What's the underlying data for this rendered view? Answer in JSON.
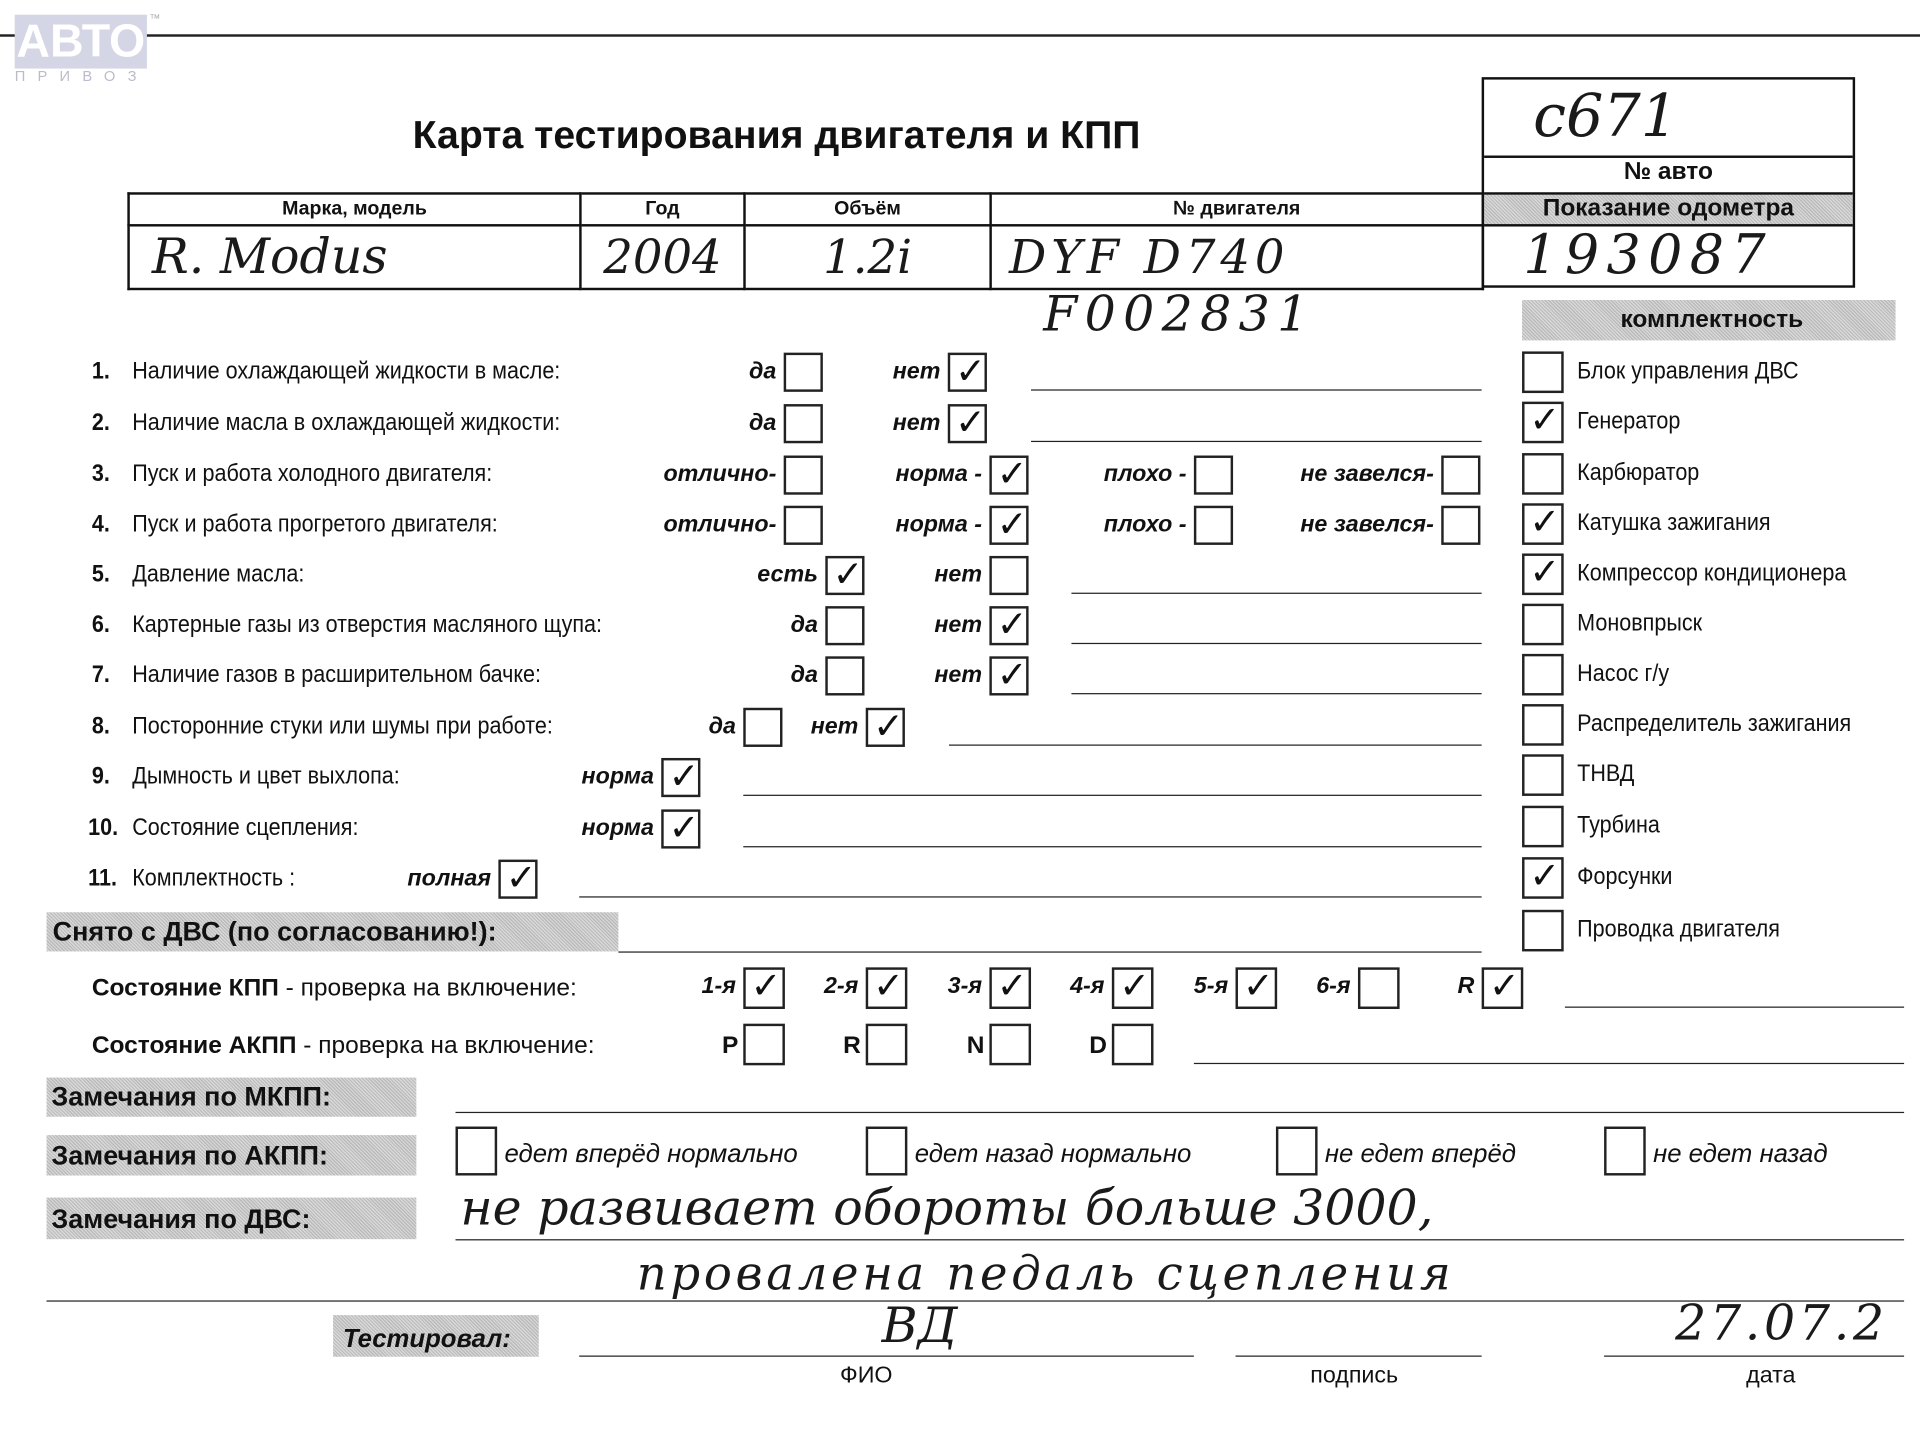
{
  "logo": {
    "text": "АВТО",
    "sub": "ПРИВОЗ",
    "tm": "™"
  },
  "title": "Карта тестирования двигателя  и КПП",
  "car_no": {
    "value": "c671",
    "label": "№ авто"
  },
  "odometer": {
    "label": "Показание одометра",
    "value": "193087"
  },
  "table": {
    "headers": [
      "Марка, модель",
      "Год",
      "Объём",
      "№ двигателя"
    ],
    "values": [
      "R. Modus",
      "2004",
      "1.2i",
      "DYF D740"
    ]
  },
  "engine_no_extra": "F002831",
  "questions": [
    {
      "n": "1.",
      "text": "Наличие охлаждающей жидкости в масле:",
      "options": [
        {
          "label": "да",
          "checked": false
        },
        {
          "label": "нет",
          "checked": true
        }
      ]
    },
    {
      "n": "2.",
      "text": "Наличие масла в охлаждающей жидкости:",
      "options": [
        {
          "label": "да",
          "checked": false
        },
        {
          "label": "нет",
          "checked": true
        }
      ]
    },
    {
      "n": "3.",
      "text": "Пуск и работа холодного двигателя:",
      "options": [
        {
          "label": "отлично-",
          "checked": false
        },
        {
          "label": "норма -",
          "checked": true
        },
        {
          "label": "плохо -",
          "checked": false
        },
        {
          "label": "не завелся-",
          "checked": false
        }
      ]
    },
    {
      "n": "4.",
      "text": "Пуск и работа прогретого двигателя:",
      "options": [
        {
          "label": "отлично-",
          "checked": false
        },
        {
          "label": "норма -",
          "checked": true
        },
        {
          "label": "плохо -",
          "checked": false
        },
        {
          "label": "не завелся-",
          "checked": false
        }
      ]
    },
    {
      "n": "5.",
      "text": "Давление масла:",
      "options": [
        {
          "label": "есть",
          "checked": true
        },
        {
          "label": "нет",
          "checked": false
        }
      ]
    },
    {
      "n": "6.",
      "text": "Картерные газы из отверстия масляного щупа:",
      "options": [
        {
          "label": "да",
          "checked": false
        },
        {
          "label": "нет",
          "checked": true
        }
      ]
    },
    {
      "n": "7.",
      "text": "Наличие газов в расширительном бачке:",
      "options": [
        {
          "label": "да",
          "checked": false
        },
        {
          "label": "нет",
          "checked": true
        }
      ]
    },
    {
      "n": "8.",
      "text": "Посторонние стуки или шумы при работе:",
      "options": [
        {
          "label": "да",
          "checked": false
        },
        {
          "label": "нет",
          "checked": true
        }
      ]
    },
    {
      "n": "9.",
      "text": "Дымность и цвет выхлопа:",
      "options": [
        {
          "label": "норма",
          "checked": true
        }
      ]
    },
    {
      "n": "10.",
      "text": "Состояние сцепления:",
      "options": [
        {
          "label": "норма",
          "checked": true
        }
      ]
    },
    {
      "n": "11.",
      "text": "Комплектность :",
      "options": [
        {
          "label": "полная",
          "checked": true
        }
      ]
    }
  ],
  "completeness": {
    "title": "комплектность",
    "items": [
      {
        "label": "Блок управления ДВС",
        "checked": false
      },
      {
        "label": "Генератор",
        "checked": true
      },
      {
        "label": "Карбюратор",
        "checked": false
      },
      {
        "label": "Катушка зажигания",
        "checked": true
      },
      {
        "label": "Компрессор кондиционера",
        "checked": true
      },
      {
        "label": "Моновпрыск",
        "checked": false
      },
      {
        "label": "Насос г/у",
        "checked": false
      },
      {
        "label": "Распределитель зажигания",
        "checked": false
      },
      {
        "label": "ТНВД",
        "checked": false
      },
      {
        "label": "Турбина",
        "checked": false
      },
      {
        "label": "Форсунки",
        "checked": true
      },
      {
        "label": "Проводка двигателя",
        "checked": false
      }
    ]
  },
  "removed": "Снято с ДВС (по согласованию!):",
  "manual_gearbox": {
    "title": "Состояние КПП",
    "suffix": " - проверка на включение:",
    "gears": [
      {
        "label": "1-я",
        "checked": true
      },
      {
        "label": "2-я",
        "checked": true
      },
      {
        "label": "3-я",
        "checked": true
      },
      {
        "label": "4-я",
        "checked": true
      },
      {
        "label": "5-я",
        "checked": true
      },
      {
        "label": "6-я",
        "checked": false
      },
      {
        "label": "R",
        "checked": true
      }
    ]
  },
  "auto_gearbox": {
    "title": "Состояние АКПП",
    "suffix": " - проверка на включение:",
    "modes": [
      {
        "label": "P",
        "checked": false
      },
      {
        "label": "R",
        "checked": false
      },
      {
        "label": "N",
        "checked": false
      },
      {
        "label": "D",
        "checked": false
      }
    ]
  },
  "remarks": {
    "mkpp": "Замечания по МКПП:",
    "akpp": "Замечания по АКПП:",
    "akpp_options": [
      {
        "label": "едет вперёд нормально",
        "checked": false
      },
      {
        "label": "едет назад нормально",
        "checked": false
      },
      {
        "label": "не едет вперёд",
        "checked": false
      },
      {
        "label": "не едет назад",
        "checked": false
      }
    ],
    "dvs": "Замечания по ДВС:",
    "dvs_text_1": "не развивает обороты больше 3000,",
    "dvs_text_2": "провалена педаль сцепления"
  },
  "tested": {
    "label": "Тестировал:",
    "name": "ВД",
    "name_label": "ФИО",
    "signature_label": "подпись",
    "date": "27.07.2",
    "date_label": "дата"
  }
}
